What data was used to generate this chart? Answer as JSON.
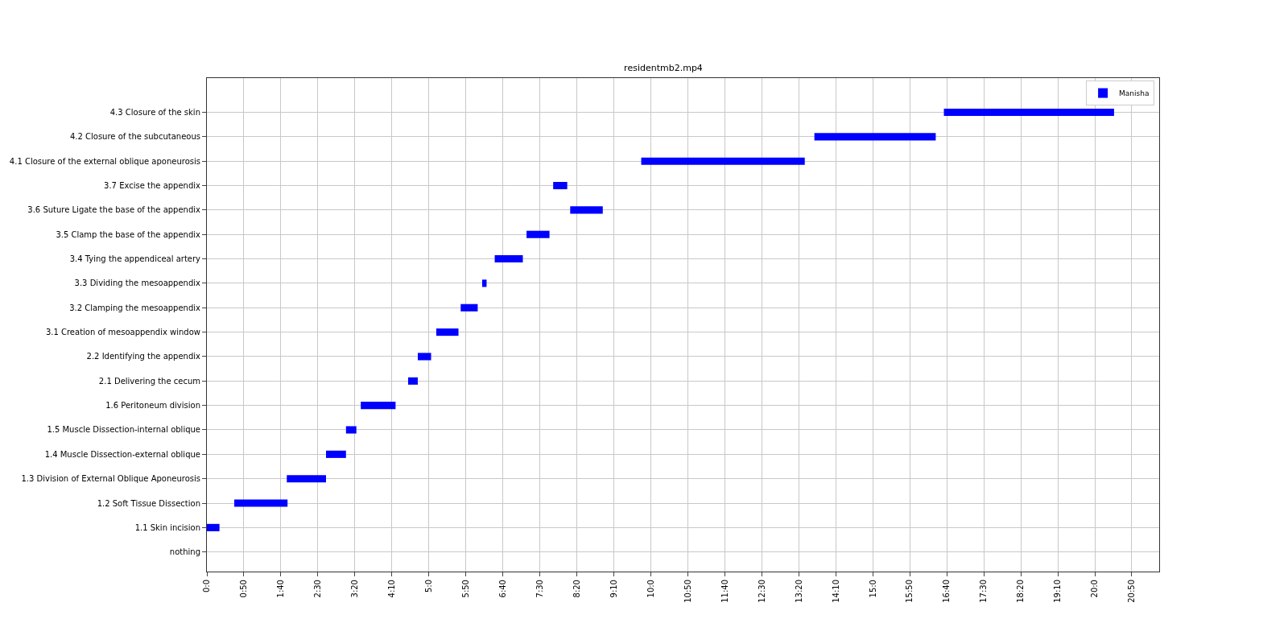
{
  "chart_data": {
    "type": "bar",
    "orientation": "horizontal",
    "title": "residentmb2.mp4",
    "categories": [
      "4.3 Closure of the skin",
      "4.2 Closure of the subcutaneous",
      "4.1 Closure of the external oblique aponeurosis",
      "3.7 Excise the appendix",
      "3.6 Suture Ligate the base of the appendix",
      "3.5 Clamp the base of the appendix",
      "3.4 Tying the appendiceal artery",
      "3.3 Dividing the mesoappendix",
      "3.2 Clamping the mesoappendix",
      "3.1 Creation of mesoappendix window",
      "2.2 Identifying the appendix",
      "2.1 Delivering the cecum",
      "1.6 Peritoneum division",
      "1.5 Muscle Dissection-internal oblique",
      "1.4 Muscle Dissection-external oblique",
      "1.3 Division of External Oblique Aponeurosis",
      "1.2 Soft Tissue Dissection",
      "1.1 Skin incision",
      "nothing"
    ],
    "series": [
      {
        "name": "Manisha",
        "color": "#0000ff",
        "base": [
          996,
          821,
          587,
          468,
          491,
          432,
          389,
          372,
          343,
          310,
          285,
          272,
          208,
          188,
          161,
          108,
          37,
          0,
          null
        ],
        "values": [
          230,
          164,
          221,
          19,
          44,
          31,
          38,
          6,
          23,
          30,
          18,
          13,
          47,
          14,
          27,
          53,
          72,
          17,
          null
        ]
      }
    ],
    "xlim": [
      0,
      1287
    ],
    "xticks": [
      {
        "value": 0,
        "label": "0:0"
      },
      {
        "value": 50,
        "label": "0:50"
      },
      {
        "value": 100,
        "label": "1:40"
      },
      {
        "value": 150,
        "label": "2:30"
      },
      {
        "value": 200,
        "label": "3:20"
      },
      {
        "value": 250,
        "label": "4:10"
      },
      {
        "value": 300,
        "label": "5:0"
      },
      {
        "value": 350,
        "label": "5:50"
      },
      {
        "value": 400,
        "label": "6:40"
      },
      {
        "value": 450,
        "label": "7:30"
      },
      {
        "value": 500,
        "label": "8:20"
      },
      {
        "value": 550,
        "label": "9:10"
      },
      {
        "value": 600,
        "label": "10:0"
      },
      {
        "value": 650,
        "label": "10:50"
      },
      {
        "value": 700,
        "label": "11:40"
      },
      {
        "value": 750,
        "label": "12:30"
      },
      {
        "value": 800,
        "label": "13:20"
      },
      {
        "value": 850,
        "label": "14:10"
      },
      {
        "value": 900,
        "label": "15:0"
      },
      {
        "value": 950,
        "label": "15:50"
      },
      {
        "value": 1000,
        "label": "16:40"
      },
      {
        "value": 1050,
        "label": "17:30"
      },
      {
        "value": 1100,
        "label": "18:20"
      },
      {
        "value": 1150,
        "label": "19:10"
      },
      {
        "value": 1200,
        "label": "20:0"
      },
      {
        "value": 1250,
        "label": "20:50"
      }
    ],
    "grid": true,
    "legend": "top right"
  }
}
